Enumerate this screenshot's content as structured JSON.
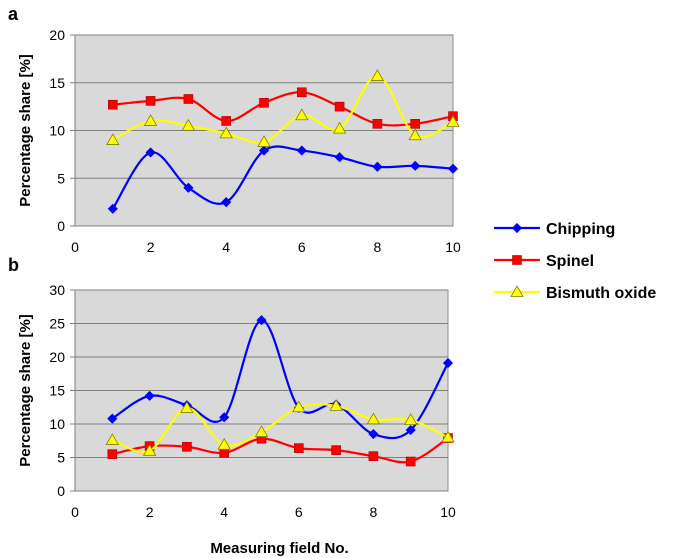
{
  "chart_data": [
    {
      "type": "line",
      "panel_label": "a",
      "ylabel": "Percentage share [%]",
      "xlabel": "",
      "xlim": [
        0,
        10
      ],
      "ylim": [
        0,
        20
      ],
      "xticks": [
        "0",
        "2",
        "4",
        "6",
        "8",
        "10"
      ],
      "yticks": [
        "0",
        "5",
        "10",
        "15",
        "20"
      ],
      "grid": true,
      "x": [
        1,
        2,
        3,
        4,
        5,
        6,
        7,
        8,
        9,
        10
      ],
      "series": [
        {
          "name": "Chipping",
          "color": "#0000ff",
          "marker": "diamond",
          "values": [
            1.8,
            7.7,
            4.0,
            2.5,
            7.9,
            7.9,
            7.2,
            6.2,
            6.3,
            6.0
          ]
        },
        {
          "name": "Spinel",
          "color": "#ff0000",
          "marker": "square",
          "values": [
            12.7,
            13.1,
            13.3,
            11.0,
            12.9,
            14.0,
            12.5,
            10.7,
            10.7,
            11.5
          ]
        },
        {
          "name": "Bismuth oxide",
          "color": "#ffff00",
          "marker": "triangle",
          "values": [
            9.0,
            11.0,
            10.5,
            9.7,
            8.8,
            11.6,
            10.2,
            15.7,
            9.5,
            10.9
          ]
        }
      ]
    },
    {
      "type": "line",
      "panel_label": "b",
      "ylabel": "Percentage share [%]",
      "xlabel": "Measuring field No.",
      "xlim": [
        0,
        10
      ],
      "ylim": [
        0,
        30
      ],
      "xticks": [
        "0",
        "2",
        "4",
        "6",
        "8",
        "10"
      ],
      "yticks": [
        "0",
        "5",
        "10",
        "15",
        "20",
        "25",
        "30"
      ],
      "grid": true,
      "x": [
        1,
        2,
        3,
        4,
        5,
        6,
        7,
        8,
        9,
        10
      ],
      "series": [
        {
          "name": "Chipping",
          "color": "#0000ff",
          "marker": "diamond",
          "values": [
            10.8,
            14.2,
            12.8,
            11.0,
            25.5,
            12.4,
            12.9,
            8.5,
            9.1,
            19.1
          ]
        },
        {
          "name": "Spinel",
          "color": "#ff0000",
          "marker": "square",
          "values": [
            5.5,
            6.7,
            6.6,
            5.7,
            7.8,
            6.4,
            6.1,
            5.2,
            4.4,
            7.9
          ]
        },
        {
          "name": "Bismuth oxide",
          "color": "#ffff00",
          "marker": "triangle",
          "values": [
            7.6,
            6.0,
            12.4,
            6.9,
            8.8,
            12.5,
            12.7,
            10.7,
            10.6,
            8.0
          ]
        }
      ]
    }
  ],
  "legend": {
    "position": "right",
    "entries": [
      {
        "label": "Chipping",
        "color": "#0000ff",
        "marker": "diamond"
      },
      {
        "label": "Spinel",
        "color": "#ff0000",
        "marker": "square"
      },
      {
        "label": "Bismuth oxide",
        "color": "#ffff00",
        "marker": "triangle"
      }
    ]
  },
  "colors": {
    "plot_background": "#d9d9d9",
    "gridline": "#808080"
  }
}
